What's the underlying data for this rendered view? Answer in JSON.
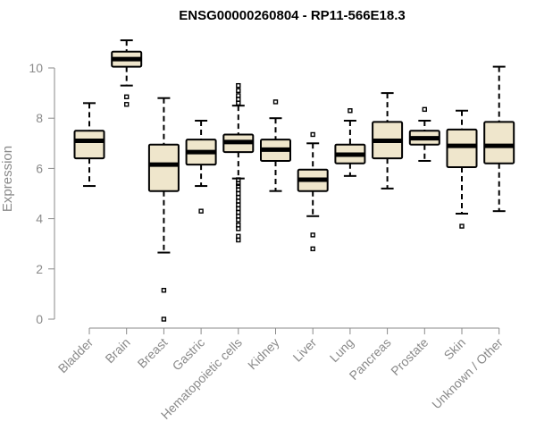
{
  "chart_data": {
    "type": "boxplot",
    "title": "ENSG00000260804 - RP11-566E18.3",
    "xlabel": "",
    "ylabel": "Expression",
    "ylim": [
      0,
      10.5
    ],
    "yticks": [
      0,
      2,
      4,
      6,
      8,
      10
    ],
    "box_fill": "#efe6cc",
    "box_stroke": "#000000",
    "axis_color": "#8a8a8a",
    "categories": [
      "Bladder",
      "Brain",
      "Breast",
      "Gastric",
      "Hematopoietic cells",
      "Kidney",
      "Liver",
      "Lung",
      "Pancreas",
      "Prostate",
      "Skin",
      "Unknown / Other"
    ],
    "boxes": [
      {
        "whisker_low": 5.3,
        "q1": 6.4,
        "median": 7.1,
        "q3": 7.5,
        "whisker_high": 8.6,
        "outliers": []
      },
      {
        "whisker_low": 9.3,
        "q1": 10.05,
        "median": 10.35,
        "q3": 10.65,
        "whisker_high": 11.1,
        "outliers": [
          8.85,
          8.55
        ]
      },
      {
        "whisker_low": 2.65,
        "q1": 5.1,
        "median": 6.15,
        "q3": 6.95,
        "whisker_high": 8.8,
        "outliers": [
          1.15,
          0.0
        ]
      },
      {
        "whisker_low": 5.3,
        "q1": 6.15,
        "median": 6.65,
        "q3": 7.15,
        "whisker_high": 7.9,
        "outliers": [
          4.3
        ]
      },
      {
        "whisker_low": 5.6,
        "q1": 6.65,
        "median": 7.05,
        "q3": 7.35,
        "whisker_high": 8.5,
        "outliers": [
          9.3,
          9.1,
          8.9,
          8.75,
          8.6,
          5.55,
          5.4,
          5.3,
          5.15,
          5.0,
          4.85,
          4.7,
          4.55,
          4.4,
          4.25,
          4.1,
          3.95,
          3.75,
          3.6,
          3.3,
          3.15
        ]
      },
      {
        "whisker_low": 5.1,
        "q1": 6.3,
        "median": 6.75,
        "q3": 7.15,
        "whisker_high": 8.0,
        "outliers": [
          8.65
        ]
      },
      {
        "whisker_low": 4.1,
        "q1": 5.1,
        "median": 5.55,
        "q3": 5.95,
        "whisker_high": 7.0,
        "outliers": [
          7.35,
          3.35,
          2.8
        ]
      },
      {
        "whisker_low": 5.7,
        "q1": 6.2,
        "median": 6.55,
        "q3": 6.95,
        "whisker_high": 7.9,
        "outliers": [
          8.3
        ]
      },
      {
        "whisker_low": 5.2,
        "q1": 6.4,
        "median": 7.1,
        "q3": 7.85,
        "whisker_high": 9.0,
        "outliers": []
      },
      {
        "whisker_low": 6.3,
        "q1": 6.95,
        "median": 7.2,
        "q3": 7.5,
        "whisker_high": 7.9,
        "outliers": [
          8.35
        ]
      },
      {
        "whisker_low": 4.2,
        "q1": 6.05,
        "median": 6.9,
        "q3": 7.55,
        "whisker_high": 8.3,
        "outliers": [
          3.7
        ]
      },
      {
        "whisker_low": 4.3,
        "q1": 6.2,
        "median": 6.9,
        "q3": 7.85,
        "whisker_high": 10.05,
        "outliers": []
      }
    ]
  }
}
